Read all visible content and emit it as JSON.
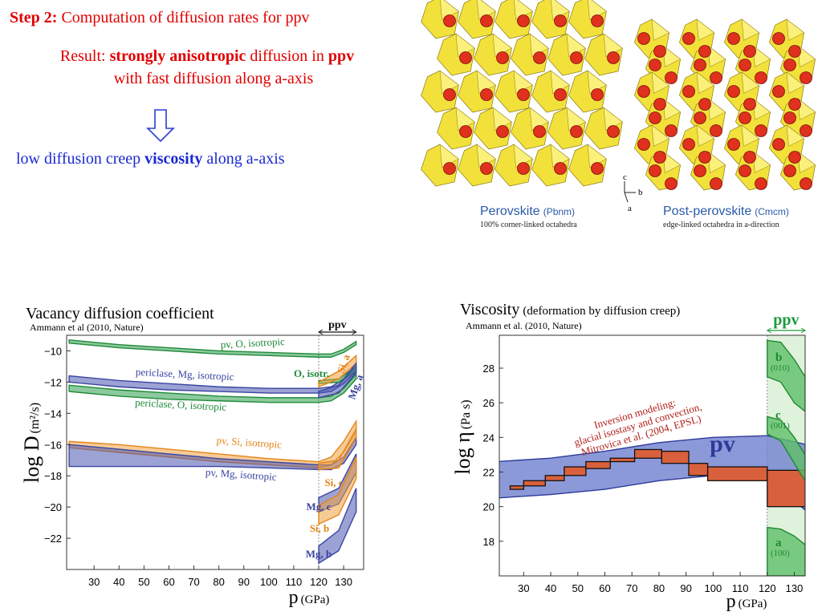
{
  "header": {
    "step": "Step 2:",
    "title": "Computation of diffusion rates for ppv"
  },
  "result": {
    "label": "Result:",
    "strong1": "strongly anisotropic",
    "mid": "diffusion in",
    "strong2": "ppv",
    "line2": "with fast diffusion along a-axis"
  },
  "conclusion": {
    "pre": "low diffusion creep",
    "strong": "viscosity",
    "post": "along a-axis"
  },
  "crystal": {
    "left_name": "Perovskite",
    "left_group": "(Pbnm)",
    "left_note": "100% corner-linked octahedra",
    "right_name": "Post-perovskite",
    "right_group": "(Cmcm)",
    "right_note": "edge-linked octahedra in a-direction",
    "axes": [
      "c",
      "b",
      "a"
    ]
  },
  "chart_data": [
    {
      "type": "band",
      "title": "Vacancy diffusion coefficient",
      "source": "Ammann et al (2010, Nature)",
      "ylabel": "log D",
      "ylabel_unit": "(m²/s)",
      "xlabel": "p",
      "xlabel_unit": "(GPa)",
      "ppv_label": "ppv",
      "ppv_range": [
        120,
        135
      ],
      "xlim": [
        19,
        138
      ],
      "ylim": [
        -24,
        -9
      ],
      "xticks": [
        30,
        40,
        50,
        60,
        70,
        80,
        90,
        100,
        110,
        120,
        130
      ],
      "yticks": [
        {
          "value": -10,
          "label": "−10"
        },
        {
          "value": -12,
          "label": "−12"
        },
        {
          "value": -14,
          "label": "−14"
        },
        {
          "value": -16,
          "label": "−16"
        },
        {
          "value": -18,
          "label": "−18"
        },
        {
          "value": -20,
          "label": "−20"
        },
        {
          "value": -22,
          "label": "−22"
        }
      ],
      "series": [
        {
          "name": "pv, O, isotropic",
          "color": "#2e9e4f",
          "x": [
            20,
            40,
            60,
            80,
            100,
            120,
            125,
            130,
            135
          ],
          "upper": [
            -9.3,
            -9.6,
            -9.8,
            -10.0,
            -10.1,
            -10.2,
            -10.2,
            -9.9,
            -9.4
          ],
          "lower": [
            -9.5,
            -9.8,
            -10.0,
            -10.2,
            -10.3,
            -10.4,
            -10.4,
            -10.1,
            -9.6
          ]
        },
        {
          "name": "periclase, Mg, isotropic",
          "color": "#4a55b0",
          "x": [
            20,
            40,
            60,
            80,
            100,
            120,
            125,
            130,
            135
          ],
          "upper": [
            -11.6,
            -11.9,
            -12.1,
            -12.3,
            -12.4,
            -12.4,
            -12.3,
            -11.8,
            -11.0
          ],
          "lower": [
            -12.0,
            -12.3,
            -12.5,
            -12.6,
            -12.7,
            -12.7,
            -12.6,
            -12.1,
            -11.3
          ]
        },
        {
          "name": "periclase, O, isotropic",
          "color": "#2e9e4f",
          "x": [
            20,
            40,
            60,
            80,
            100,
            120,
            125,
            130,
            135
          ],
          "upper": [
            -12.2,
            -12.5,
            -12.7,
            -12.9,
            -13.0,
            -13.0,
            -12.9,
            -12.4,
            -11.5
          ],
          "lower": [
            -12.6,
            -12.9,
            -13.1,
            -13.2,
            -13.3,
            -13.3,
            -13.2,
            -12.7,
            -11.8
          ]
        },
        {
          "name": "pv, Si, isotropic",
          "color": "#f0a040",
          "x": [
            20,
            40,
            60,
            80,
            100,
            120,
            125,
            130,
            135
          ],
          "upper": [
            -15.8,
            -16.0,
            -16.3,
            -16.6,
            -16.9,
            -17.1,
            -16.8,
            -15.8,
            -14.5
          ],
          "lower": [
            -16.2,
            -16.5,
            -16.8,
            -17.1,
            -17.3,
            -17.5,
            -17.3,
            -16.5,
            -15.2
          ]
        },
        {
          "name": "pv, Mg, isotropic",
          "color": "#4a55b0",
          "x": [
            20,
            40,
            60,
            80,
            100,
            120,
            125,
            130,
            135
          ],
          "upper": [
            -16.0,
            -16.3,
            -16.6,
            -16.9,
            -17.1,
            -17.3,
            -17.3,
            -16.8,
            -15.5
          ],
          "lower": [
            -17.4,
            -17.4,
            -17.4,
            -17.4,
            -17.5,
            -17.6,
            -17.6,
            -17.2,
            -16.0
          ]
        },
        {
          "name": "O, isotr.",
          "color": "#2e9e4f",
          "x": [
            120,
            128,
            135
          ],
          "upper": [
            -11.9,
            -11.8,
            -11.0
          ],
          "lower": [
            -12.1,
            -12.0,
            -11.3
          ]
        },
        {
          "name": "Si, a",
          "color": "#f0a040",
          "x": [
            120,
            128,
            135
          ],
          "upper": [
            -12.0,
            -11.3,
            -10.3
          ],
          "lower": [
            -12.3,
            -11.8,
            -10.8
          ]
        },
        {
          "name": "Mg, a",
          "color": "#4a55b0",
          "x": [
            120,
            128,
            135
          ],
          "upper": [
            -12.6,
            -12.2,
            -10.8
          ],
          "lower": [
            -13.0,
            -12.7,
            -11.4
          ]
        },
        {
          "name": "Si, c",
          "color": "#f0a040",
          "x": [
            120,
            128,
            135
          ],
          "upper": [
            -17.2,
            -17.0,
            -15.0
          ],
          "lower": [
            -17.6,
            -17.5,
            -15.6
          ]
        },
        {
          "name": "Mg, c",
          "color": "#4a55b0",
          "x": [
            120,
            128,
            135
          ],
          "upper": [
            -19.4,
            -18.8,
            -16.6
          ],
          "lower": [
            -20.3,
            -19.8,
            -17.8
          ]
        },
        {
          "name": "Si, b",
          "color": "#f0a040",
          "x": [
            120,
            128,
            135
          ],
          "upper": [
            -19.9,
            -19.2,
            -16.8
          ],
          "lower": [
            -21.1,
            -20.5,
            -18.2
          ]
        },
        {
          "name": "Mg, b",
          "color": "#4a55b0",
          "x": [
            120,
            128,
            135
          ],
          "upper": [
            -22.5,
            -21.5,
            -18.8
          ],
          "lower": [
            -23.6,
            -22.8,
            -20.3
          ]
        }
      ]
    },
    {
      "type": "band",
      "title": "Viscosity",
      "subtitle": "(deformation by diffusion creep)",
      "source": "Ammann et al. (2010, Nature)",
      "ylabel": "log η",
      "ylabel_unit": "(Pa s)",
      "xlabel": "p",
      "xlabel_unit": "(GPa)",
      "ppv_label": "ppv",
      "ppv_range": [
        120,
        134
      ],
      "xlim": [
        21,
        134
      ],
      "ylim": [
        16,
        29.9
      ],
      "xticks": [
        30,
        40,
        50,
        60,
        70,
        80,
        90,
        100,
        110,
        120,
        130
      ],
      "yticks": [
        18,
        20,
        22,
        24,
        26,
        28
      ],
      "annotation": [
        "Inversion modeling:",
        "glacial isostasy and convection,",
        "Mitrovica et al. (2004, EPSL)"
      ],
      "steps": {
        "color": "#d9603c",
        "bins": [
          25,
          30,
          38,
          45,
          53,
          62,
          71,
          81,
          91,
          98,
          120,
          134
        ],
        "upper": [
          21.2,
          21.5,
          21.8,
          22.3,
          22.6,
          22.8,
          23.3,
          23.2,
          22.5,
          22.3,
          22.1
        ],
        "lower": [
          21.0,
          21.2,
          21.5,
          21.8,
          22.2,
          22.6,
          22.8,
          22.5,
          21.8,
          21.5,
          20.0
        ]
      },
      "series": [
        {
          "name": "pv",
          "color": "#6f7fd0",
          "x": [
            20,
            40,
            60,
            80,
            100,
            120,
            134
          ],
          "upper": [
            22.6,
            22.8,
            23.2,
            23.7,
            24.0,
            24.1,
            23.6
          ],
          "lower": [
            20.5,
            20.7,
            21.0,
            21.5,
            21.8,
            21.7,
            19.8
          ]
        },
        {
          "name": "b",
          "sub": "(010)",
          "color": "#5fbf6a",
          "x": [
            120,
            125,
            130,
            134
          ],
          "upper": [
            29.6,
            29.5,
            28.5,
            27.5
          ],
          "lower": [
            27.5,
            27.2,
            26.0,
            25.5
          ]
        },
        {
          "name": "c",
          "sub": "(001)",
          "color": "#5fbf6a",
          "x": [
            120,
            125,
            130,
            134
          ],
          "upper": [
            25.2,
            25.0,
            24.0,
            23.0
          ],
          "lower": [
            24.2,
            23.8,
            22.5,
            21.5
          ]
        },
        {
          "name": "a",
          "sub": "(100)",
          "color": "#5fbf6a",
          "x": [
            120,
            125,
            130,
            134
          ],
          "upper": [
            18.8,
            18.7,
            18.3,
            17.8
          ],
          "lower": [
            16,
            16,
            16,
            16
          ]
        }
      ]
    }
  ]
}
